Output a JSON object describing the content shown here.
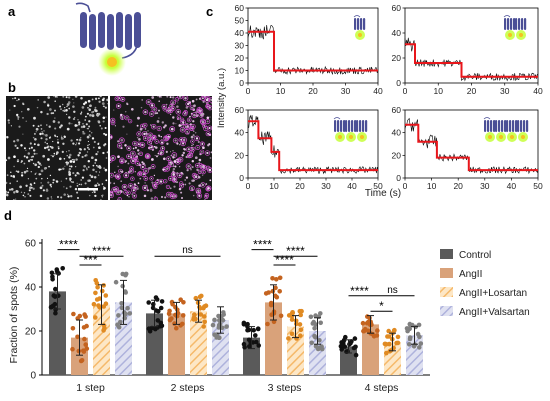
{
  "panels": {
    "a": "a",
    "b": "b",
    "c": "c",
    "d": "d"
  },
  "colors": {
    "receptor": "#4b4f96",
    "fluor_glow": "#b8ff3a",
    "fluor_core": "#f0c020",
    "trace": "#000000",
    "fit": "#e8161b",
    "Control": "#5a5a5a",
    "AngII": "#d9a27a",
    "AngII+Losartan": "#f5b96a",
    "AngII+Valsartan": "#aeb2dc",
    "dot_Control": "#111111",
    "dot_AngII": "#c4631f",
    "dot_AngII+Losartan": "#e08a22",
    "dot_AngII+Valsartan": "#808080"
  },
  "panel_c": {
    "ylabel": "Intensity (a.u.)",
    "xlabel": "Time (s)",
    "plots": [
      {
        "xlim": [
          0,
          40
        ],
        "xticks": [
          "0",
          "10",
          "20",
          "30",
          "40"
        ],
        "ylim": [
          0,
          60
        ],
        "yticks": [
          "0",
          "10",
          "20",
          "30",
          "40",
          "50",
          "60"
        ],
        "ylabel_tick_side": "left",
        "levels": [
          [
            0,
            8,
            41
          ],
          [
            8,
            40,
            10
          ]
        ],
        "spots": 1
      },
      {
        "xlim": [
          0,
          40
        ],
        "xticks": [
          "0",
          "10",
          "20",
          "30",
          "40"
        ],
        "ylim": [
          0,
          60
        ],
        "yticks": [
          "0",
          "20",
          "40",
          "60"
        ],
        "levels": [
          [
            0,
            3,
            31
          ],
          [
            3,
            17,
            16
          ],
          [
            17,
            40,
            5
          ]
        ],
        "spots": 2
      },
      {
        "xlim": [
          0,
          50
        ],
        "xticks": [
          "0",
          "10",
          "20",
          "30",
          "40",
          "50"
        ],
        "ylim": [
          0,
          60
        ],
        "yticks": [
          "0",
          "20",
          "40",
          "60"
        ],
        "levels": [
          [
            0,
            4,
            50
          ],
          [
            4,
            9,
            35
          ],
          [
            9,
            12,
            23
          ],
          [
            12,
            50,
            7
          ]
        ],
        "spots": 3
      },
      {
        "xlim": [
          0,
          50
        ],
        "xticks": [
          "0",
          "10",
          "20",
          "30",
          "40",
          "50"
        ],
        "ylim": [
          0,
          60
        ],
        "yticks": [
          "0",
          "20",
          "40",
          "60"
        ],
        "levels": [
          [
            0,
            5,
            47
          ],
          [
            5,
            12,
            32
          ],
          [
            12,
            24,
            18
          ],
          [
            24,
            50,
            7
          ]
        ],
        "spots": 4
      }
    ]
  },
  "chart_data": {
    "type": "bar",
    "ylabel": "Fraction of spots (%)",
    "xlabel": "",
    "ylim": [
      0,
      60
    ],
    "yticks": [
      "0",
      "20",
      "40",
      "60"
    ],
    "categories": [
      "1 step",
      "2 steps",
      "3 steps",
      "4 steps"
    ],
    "series": [
      {
        "name": "Control",
        "values": [
          38,
          28,
          17,
          13
        ],
        "sd": [
          8,
          6,
          5,
          3
        ]
      },
      {
        "name": "AngII",
        "values": [
          17,
          28,
          33,
          23
        ],
        "sd": [
          8,
          5,
          8,
          4
        ]
      },
      {
        "name": "AngII+Losartan",
        "values": [
          32,
          29,
          22,
          15
        ],
        "sd": [
          9,
          5,
          5,
          4
        ]
      },
      {
        "name": "AngII+Valsartan",
        "values": [
          33,
          25,
          20,
          18
        ],
        "sd": [
          10,
          6,
          6,
          4
        ]
      }
    ],
    "significance": [
      {
        "label": "****",
        "group": 0,
        "from": 0,
        "to": 1,
        "y": 57
      },
      {
        "label": "****",
        "group": 0,
        "from": 1,
        "to": 3,
        "y": 54
      },
      {
        "label": "***",
        "group": 0,
        "from": 1,
        "to": 2,
        "y": 50
      },
      {
        "label": "ns",
        "group_from": 1,
        "from": 0,
        "group_to": 1,
        "to": 3,
        "y": 54
      },
      {
        "label": "****",
        "group": 2,
        "from": 0,
        "to": 1,
        "y": 57
      },
      {
        "label": "****",
        "group": 2,
        "from": 1,
        "to": 3,
        "y": 54
      },
      {
        "label": "****",
        "group": 2,
        "from": 1,
        "to": 2,
        "y": 50
      },
      {
        "label": "****",
        "group": 3,
        "from": 0,
        "to": 1,
        "y": 36
      },
      {
        "label": "ns",
        "group": 3,
        "from": 1,
        "to": 3,
        "y": 36
      },
      {
        "label": "*",
        "group": 3,
        "from": 1,
        "to": 2,
        "y": 29
      }
    ],
    "legend_position": "right"
  }
}
